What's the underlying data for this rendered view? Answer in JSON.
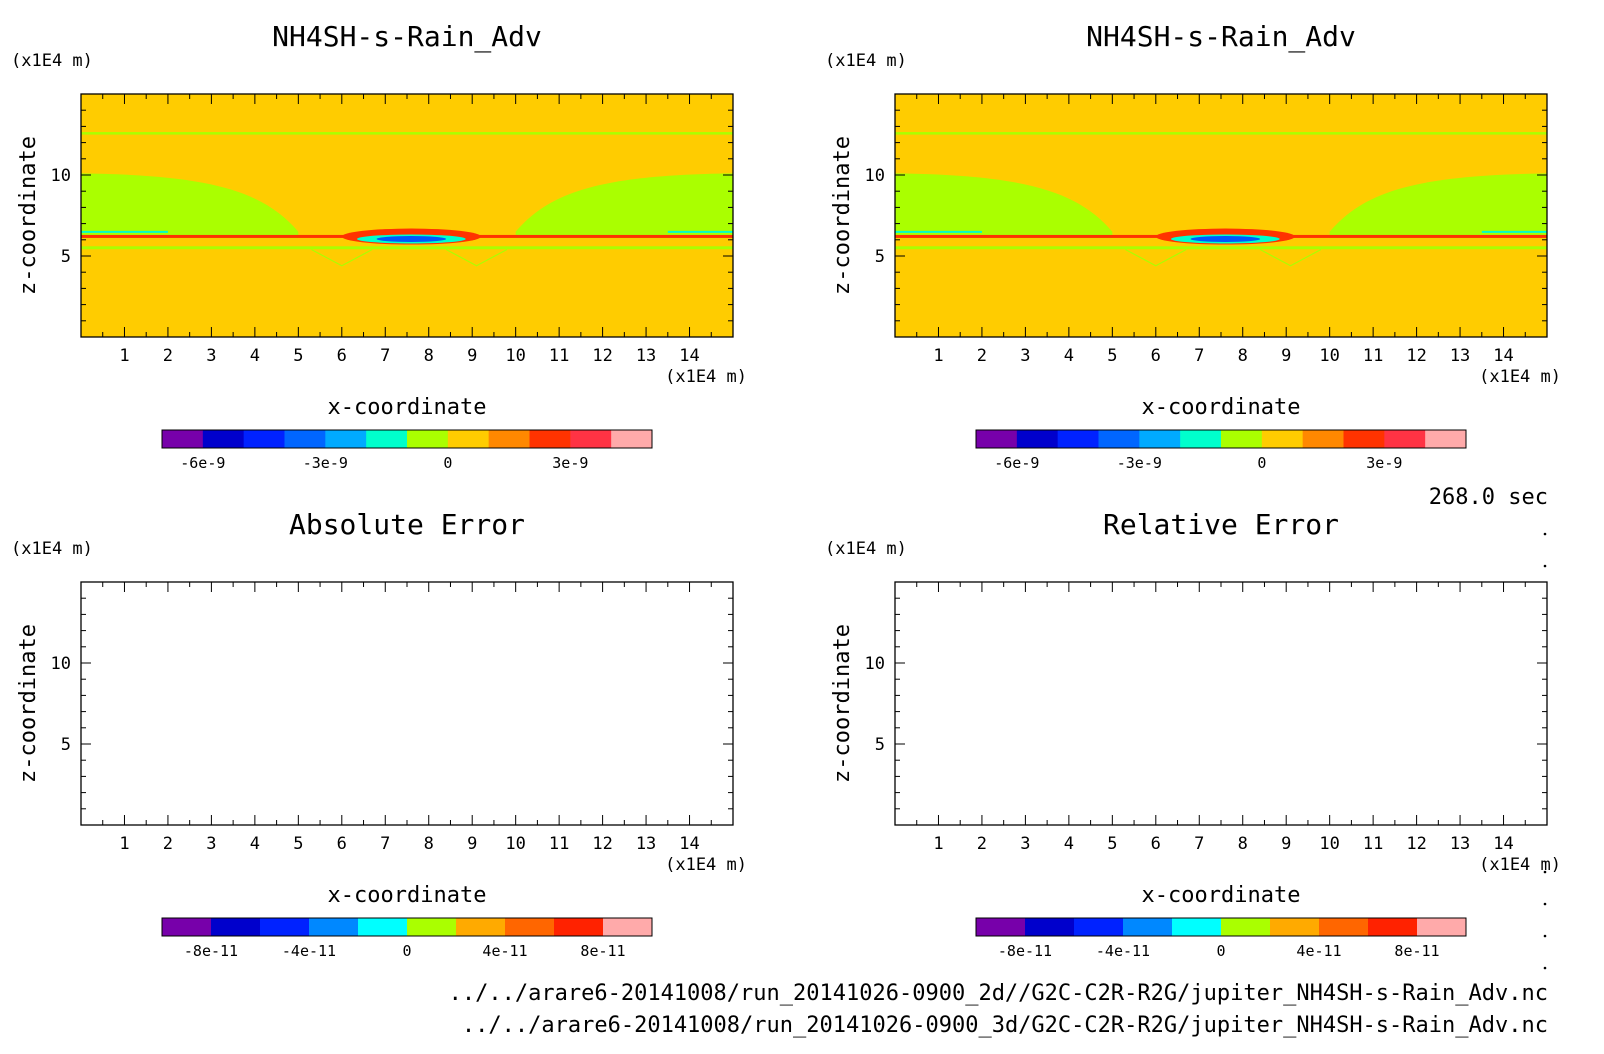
{
  "time_label": "268.0 sec",
  "file_paths": [
    "../../arare6-20141008/run_20141026-0900_2d//G2C-C2R-R2G/jupiter_NH4SH-s-Rain_Adv.nc",
    "../../arare6-20141008/run_20141026-0900_3d/G2C-C2R-R2G/jupiter_NH4SH-s-Rain_Adv.nc"
  ],
  "colors": {
    "background_field": "#ffcc00",
    "green_band": "#aaff00",
    "blue_core": "#0055ff",
    "red_rim": "#ff3300"
  },
  "chart_data": [
    {
      "type": "heatmap",
      "title": "NH4SH-s-Rain_Adv",
      "xlabel": "x-coordinate",
      "ylabel": "z-coordinate",
      "x_unit": "(x1E4 m)",
      "y_unit": "(x1E4 m)",
      "xlim": [
        0,
        15
      ],
      "ylim": [
        0,
        15
      ],
      "x_ticks": [
        "1",
        "2",
        "3",
        "4",
        "5",
        "6",
        "7",
        "8",
        "9",
        "10",
        "11",
        "12",
        "13",
        "14"
      ],
      "y_ticks": [
        "5",
        "10"
      ],
      "filled": true,
      "colorbar": {
        "colors": [
          "#7700aa",
          "#0000cc",
          "#0022ff",
          "#0066ff",
          "#00aaff",
          "#00ffcc",
          "#aaff00",
          "#ffcc00",
          "#ff8800",
          "#ff3300",
          "#ff3344",
          "#ffaaaa"
        ],
        "tick_labels": [
          "-6e-9",
          "-3e-9",
          "0",
          "3e-9"
        ],
        "tick_values": [
          -6e-09,
          -3e-09,
          0,
          3e-09
        ],
        "range": [
          -7e-09,
          5e-09
        ]
      }
    },
    {
      "type": "heatmap",
      "title": "NH4SH-s-Rain_Adv",
      "xlabel": "x-coordinate",
      "ylabel": "z-coordinate",
      "x_unit": "(x1E4 m)",
      "y_unit": "(x1E4 m)",
      "xlim": [
        0,
        15
      ],
      "ylim": [
        0,
        15
      ],
      "x_ticks": [
        "1",
        "2",
        "3",
        "4",
        "5",
        "6",
        "7",
        "8",
        "9",
        "10",
        "11",
        "12",
        "13",
        "14"
      ],
      "y_ticks": [
        "5",
        "10"
      ],
      "filled": true,
      "colorbar": {
        "colors": [
          "#7700aa",
          "#0000cc",
          "#0022ff",
          "#0066ff",
          "#00aaff",
          "#00ffcc",
          "#aaff00",
          "#ffcc00",
          "#ff8800",
          "#ff3300",
          "#ff3344",
          "#ffaaaa"
        ],
        "tick_labels": [
          "-6e-9",
          "-3e-9",
          "0",
          "3e-9"
        ],
        "tick_values": [
          -6e-09,
          -3e-09,
          0,
          3e-09
        ],
        "range": [
          -7e-09,
          5e-09
        ]
      }
    },
    {
      "type": "heatmap",
      "title": "Absolute Error",
      "xlabel": "x-coordinate",
      "ylabel": "z-coordinate",
      "x_unit": "(x1E4 m)",
      "y_unit": "(x1E4 m)",
      "xlim": [
        0,
        15
      ],
      "ylim": [
        0,
        15
      ],
      "x_ticks": [
        "1",
        "2",
        "3",
        "4",
        "5",
        "6",
        "7",
        "8",
        "9",
        "10",
        "11",
        "12",
        "13",
        "14"
      ],
      "y_ticks": [
        "5",
        "10"
      ],
      "filled": false,
      "colorbar": {
        "colors": [
          "#7700aa",
          "#0000cc",
          "#0022ff",
          "#0088ff",
          "#00ffff",
          "#aaff00",
          "#ffaa00",
          "#ff6600",
          "#ff2200",
          "#ffaaaa"
        ],
        "tick_labels": [
          "-8e-11",
          "-4e-11",
          "0",
          "4e-11",
          "8e-11"
        ],
        "tick_values": [
          -8e-11,
          -4e-11,
          0,
          4e-11,
          8e-11
        ],
        "range": [
          -1e-10,
          1e-10
        ]
      }
    },
    {
      "type": "heatmap",
      "title": "Relative Error",
      "xlabel": "x-coordinate",
      "ylabel": "z-coordinate",
      "x_unit": "(x1E4 m)",
      "y_unit": "(x1E4 m)",
      "xlim": [
        0,
        15
      ],
      "ylim": [
        0,
        15
      ],
      "x_ticks": [
        "1",
        "2",
        "3",
        "4",
        "5",
        "6",
        "7",
        "8",
        "9",
        "10",
        "11",
        "12",
        "13",
        "14"
      ],
      "y_ticks": [
        "5",
        "10"
      ],
      "filled": false,
      "colorbar": {
        "colors": [
          "#7700aa",
          "#0000cc",
          "#0022ff",
          "#0088ff",
          "#00ffff",
          "#aaff00",
          "#ffaa00",
          "#ff6600",
          "#ff2200",
          "#ffaaaa"
        ],
        "tick_labels": [
          "-8e-11",
          "-4e-11",
          "0",
          "4e-11",
          "8e-11"
        ],
        "tick_values": [
          -8e-11,
          -4e-11,
          0,
          4e-11,
          8e-11
        ],
        "range": [
          -1e-10,
          1e-10
        ]
      }
    }
  ]
}
